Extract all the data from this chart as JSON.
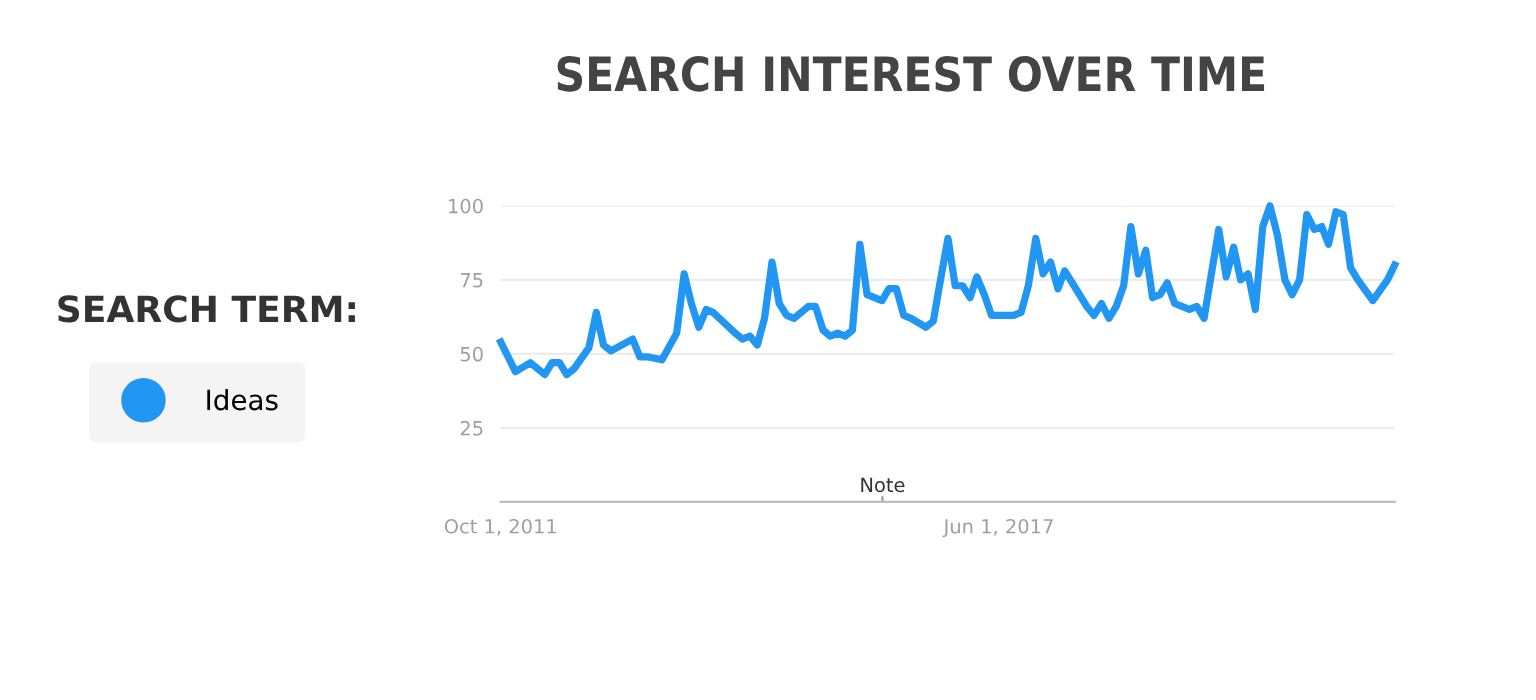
{
  "chart_data": {
    "type": "line",
    "title": "SEARCH INTEREST OVER TIME",
    "legend_title": "SEARCH TERM:",
    "x": [
      "2011-10",
      "2011-12",
      "2012-02",
      "2012-04",
      "2012-05",
      "2012-06",
      "2012-07",
      "2012-08",
      "2012-10",
      "2012-11",
      "2012-12",
      "2013-01",
      "2013-04",
      "2013-05",
      "2013-06",
      "2013-08",
      "2013-10",
      "2013-11",
      "2013-12",
      "2014-01",
      "2014-02",
      "2014-03",
      "2014-06",
      "2014-07",
      "2014-08",
      "2014-09",
      "2014-10",
      "2014-11",
      "2014-12",
      "2015-01",
      "2015-02",
      "2015-04",
      "2015-05",
      "2015-06",
      "2015-07",
      "2015-08",
      "2015-09",
      "2015-10",
      "2015-11",
      "2015-12",
      "2016-02",
      "2016-03",
      "2016-04",
      "2016-05",
      "2016-06",
      "2016-08",
      "2016-09",
      "2016-10",
      "2016-11",
      "2016-12",
      "2017-01",
      "2017-02",
      "2017-03",
      "2017-04",
      "2017-05",
      "2017-06",
      "2017-08",
      "2017-09",
      "2017-10",
      "2017-11",
      "2017-12",
      "2018-01",
      "2018-02",
      "2018-03",
      "2018-04",
      "2018-06",
      "2018-07",
      "2018-08",
      "2018-09",
      "2018-10",
      "2018-11",
      "2018-12",
      "2019-01",
      "2019-02",
      "2019-03",
      "2019-04",
      "2019-05",
      "2019-06",
      "2019-08",
      "2019-09",
      "2019-10",
      "2019-12",
      "2020-01",
      "2020-02",
      "2020-03",
      "2020-04",
      "2020-05",
      "2020-06",
      "2020-07",
      "2020-08",
      "2020-09",
      "2020-10",
      "2020-11",
      "2020-12",
      "2021-01",
      "2021-02",
      "2021-03",
      "2021-04",
      "2021-05",
      "2021-06",
      "2021-07",
      "2021-09",
      "2021-11",
      "2021-12"
    ],
    "series": [
      {
        "name": "Ideas",
        "color": "#2196f3",
        "values": [
          54,
          44,
          47,
          43,
          47,
          47,
          43,
          45,
          52,
          64,
          53,
          51,
          55,
          49,
          49,
          48,
          57,
          77,
          67,
          59,
          65,
          64,
          57,
          55,
          56,
          53,
          62,
          81,
          67,
          63,
          62,
          66,
          66,
          58,
          56,
          57,
          56,
          58,
          87,
          70,
          68,
          72,
          72,
          63,
          62,
          59,
          61,
          75,
          89,
          73,
          73,
          69,
          76,
          70,
          63,
          63,
          63,
          64,
          73,
          89,
          77,
          81,
          72,
          78,
          74,
          66,
          63,
          67,
          62,
          66,
          73,
          93,
          77,
          85,
          69,
          70,
          74,
          67,
          65,
          66,
          62,
          92,
          76,
          86,
          75,
          77,
          65,
          93,
          100,
          90,
          75,
          70,
          75,
          97,
          92,
          93,
          87,
          98,
          97,
          79,
          75,
          68,
          75,
          80
        ]
      }
    ],
    "xlim": [
      "2011-10",
      "2021-12"
    ],
    "xticks": [
      {
        "value": "2011-10-01",
        "label": "Oct 1, 2011"
      },
      {
        "value": "2017-06-01",
        "label": "Jun 1, 2017"
      }
    ],
    "ylim": [
      0,
      100
    ],
    "yticks": [
      25,
      50,
      75,
      100
    ],
    "annotations": [
      "Note"
    ],
    "grid": "y",
    "legend": "left",
    "marker": "none",
    "line_style": "solid"
  }
}
